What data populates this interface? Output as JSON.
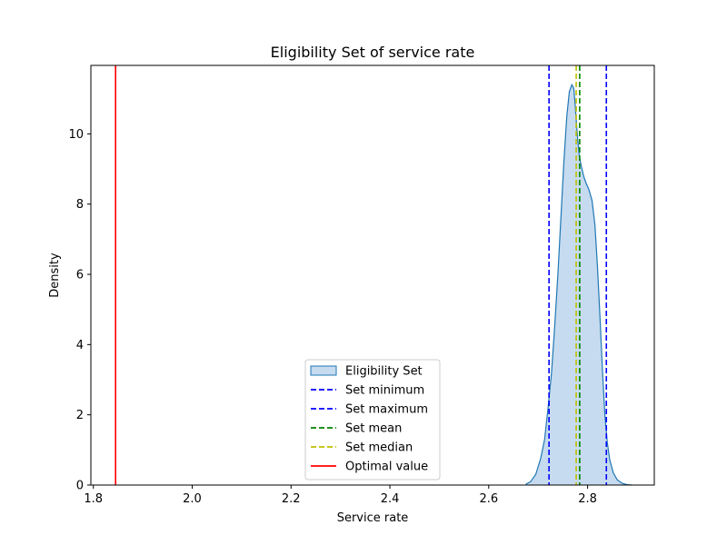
{
  "chart_data": {
    "type": "area",
    "title": "Eligibility Set of service rate",
    "xlabel": "Service rate",
    "ylabel": "Density",
    "xlim": [
      1.795,
      2.935
    ],
    "ylim": [
      0,
      11.95
    ],
    "xticks": [
      1.8,
      2.0,
      2.2,
      2.4,
      2.6,
      2.8
    ],
    "xtick_labels": [
      "1.8",
      "2.0",
      "2.2",
      "2.4",
      "2.6",
      "2.8"
    ],
    "yticks": [
      0,
      2,
      4,
      6,
      8,
      10
    ],
    "ytick_labels": [
      "0",
      "2",
      "4",
      "6",
      "8",
      "10"
    ],
    "grid": false,
    "legend_position": "bottom-center",
    "density": {
      "name": "Eligibility Set",
      "fill_color": "#c6dbef",
      "line_color": "#1f77b4",
      "x": [
        2.675,
        2.685,
        2.695,
        2.705,
        2.713,
        2.72,
        2.727,
        2.733,
        2.74,
        2.746,
        2.752,
        2.758,
        2.763,
        2.768,
        2.772,
        2.775,
        2.779,
        2.783,
        2.787,
        2.792,
        2.797,
        2.803,
        2.809,
        2.815,
        2.82,
        2.825,
        2.83,
        2.835,
        2.84,
        2.845,
        2.852,
        2.86,
        2.87,
        2.88,
        2.89
      ],
      "y": [
        0.02,
        0.1,
        0.3,
        0.75,
        1.3,
        2.2,
        3.2,
        4.4,
        6.0,
        7.6,
        9.2,
        10.5,
        11.2,
        11.4,
        11.3,
        10.8,
        10.0,
        9.4,
        9.1,
        8.8,
        8.6,
        8.4,
        8.1,
        7.4,
        6.2,
        4.8,
        3.3,
        2.0,
        1.2,
        0.7,
        0.35,
        0.15,
        0.05,
        0.01,
        0.0
      ]
    },
    "lines": [
      {
        "name": "Set minimum",
        "x": 2.722,
        "color": "#0000ff",
        "style": "dashed"
      },
      {
        "name": "Set maximum",
        "x": 2.838,
        "color": "#0000ff",
        "style": "dashed"
      },
      {
        "name": "Set mean",
        "x": 2.784,
        "color": "#008000",
        "style": "dashed"
      },
      {
        "name": "Set median",
        "x": 2.777,
        "color": "#bfbf00",
        "style": "dashed"
      },
      {
        "name": "Optimal value",
        "x": 1.845,
        "color": "#ff0000",
        "style": "solid"
      }
    ]
  }
}
